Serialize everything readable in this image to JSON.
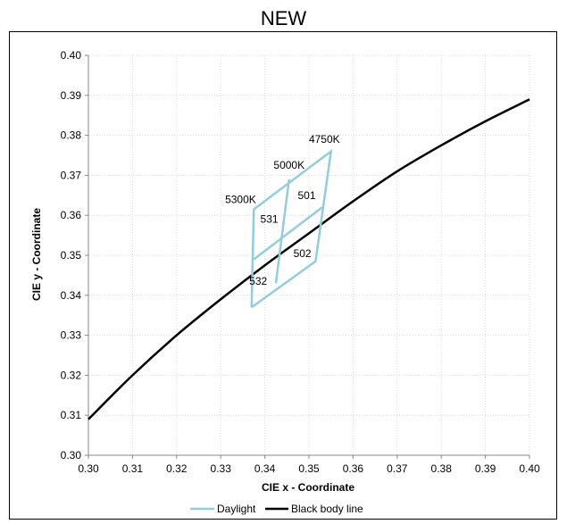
{
  "chart_data": {
    "type": "line",
    "title": "NEW",
    "xlabel": "CIE x - Coordinate",
    "ylabel": "CIE y - Coordinate",
    "xlim": [
      0.3,
      0.4
    ],
    "ylim": [
      0.3,
      0.4
    ],
    "xticks": [
      "0.30",
      "0.31",
      "0.32",
      "0.33",
      "0.34",
      "0.35",
      "0.36",
      "0.37",
      "0.38",
      "0.39",
      "0.40"
    ],
    "yticks": [
      "0.30",
      "0.31",
      "0.32",
      "0.33",
      "0.34",
      "0.35",
      "0.36",
      "0.37",
      "0.38",
      "0.39",
      "0.40"
    ],
    "grid": true,
    "legend_position": "bottom",
    "series": [
      {
        "name": "Black body line",
        "color": "#000000",
        "x": [
          0.3,
          0.31,
          0.32,
          0.33,
          0.34,
          0.35,
          0.36,
          0.37,
          0.38,
          0.39,
          0.4
        ],
        "y": [
          0.309,
          0.32,
          0.33,
          0.339,
          0.3475,
          0.3555,
          0.3635,
          0.371,
          0.3775,
          0.3835,
          0.389
        ]
      },
      {
        "name": "Daylight",
        "color": "#92CDDC",
        "segments": [
          {
            "x": [
              0.337,
              0.3375,
              0.355,
              0.3515,
              0.337
            ],
            "y": [
              0.337,
              0.3615,
              0.376,
              0.3485,
              0.337
            ]
          },
          {
            "x": [
              0.3455,
              0.3425
            ],
            "y": [
              0.369,
              0.343
            ]
          },
          {
            "x": [
              0.3375,
              0.353
            ],
            "y": [
              0.349,
              0.362
            ]
          }
        ]
      }
    ],
    "annotations": [
      {
        "text": "4750K",
        "x": 0.3535,
        "y": 0.379
      },
      {
        "text": "5000K",
        "x": 0.3455,
        "y": 0.3725
      },
      {
        "text": "5300K",
        "x": 0.3345,
        "y": 0.364
      },
      {
        "text": "501",
        "x": 0.3495,
        "y": 0.365
      },
      {
        "text": "531",
        "x": 0.341,
        "y": 0.359
      },
      {
        "text": "502",
        "x": 0.3485,
        "y": 0.3505
      },
      {
        "text": "532",
        "x": 0.3385,
        "y": 0.3435
      }
    ]
  }
}
